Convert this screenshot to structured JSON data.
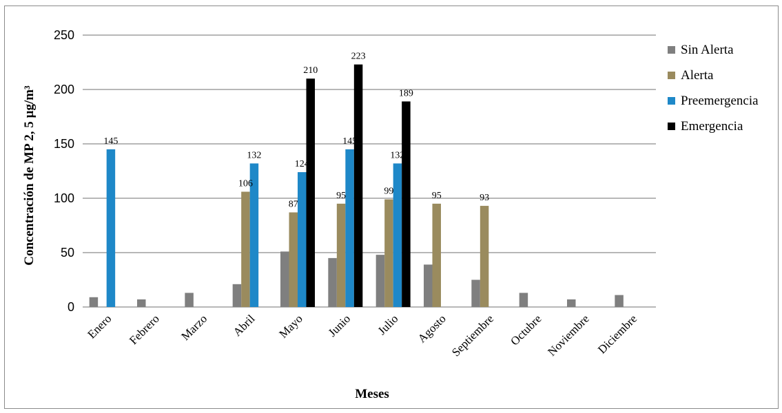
{
  "chart_data": {
    "type": "bar",
    "title": "",
    "xlabel": "Meses",
    "ylabel": "Concentración de MP 2, 5 µg/m³",
    "ylim": [
      0,
      250
    ],
    "yticks": [
      0,
      50,
      100,
      150,
      200,
      250
    ],
    "grid": true,
    "legend_position": "right",
    "categories": [
      "Enero",
      "Febrero",
      "Marzo",
      "Abril",
      "Mayo",
      "Junio",
      "Julio",
      "Agosto",
      "Septiembre",
      "Octubre",
      "Noviembre",
      "Diciembre"
    ],
    "series": [
      {
        "name": "Sin Alerta",
        "color": "#7f7f7f",
        "values": [
          9,
          7,
          13,
          21,
          51,
          45,
          48,
          39,
          25,
          13,
          7,
          11
        ],
        "labels": [
          null,
          null,
          null,
          null,
          null,
          null,
          null,
          null,
          null,
          null,
          null,
          null
        ]
      },
      {
        "name": "Alerta",
        "color": "#9a8b5e",
        "values": [
          null,
          null,
          null,
          106,
          87,
          95,
          99,
          95,
          93,
          null,
          null,
          null
        ],
        "labels": [
          null,
          null,
          null,
          "106",
          "87",
          "95",
          "99",
          "95",
          "93",
          null,
          null,
          null
        ]
      },
      {
        "name": "Preemergencia",
        "color": "#1e88c8",
        "values": [
          145,
          null,
          null,
          132,
          124,
          145,
          132,
          null,
          null,
          null,
          null,
          null
        ],
        "labels": [
          "145",
          null,
          null,
          "132",
          "124",
          "145",
          "132",
          null,
          null,
          null,
          null,
          null
        ]
      },
      {
        "name": "Emergencia",
        "color": "#000000",
        "values": [
          null,
          null,
          null,
          null,
          210,
          223,
          189,
          null,
          null,
          null,
          null,
          null
        ],
        "labels": [
          null,
          null,
          null,
          null,
          "210",
          "223",
          "189",
          null,
          null,
          null,
          null,
          null
        ]
      }
    ]
  }
}
